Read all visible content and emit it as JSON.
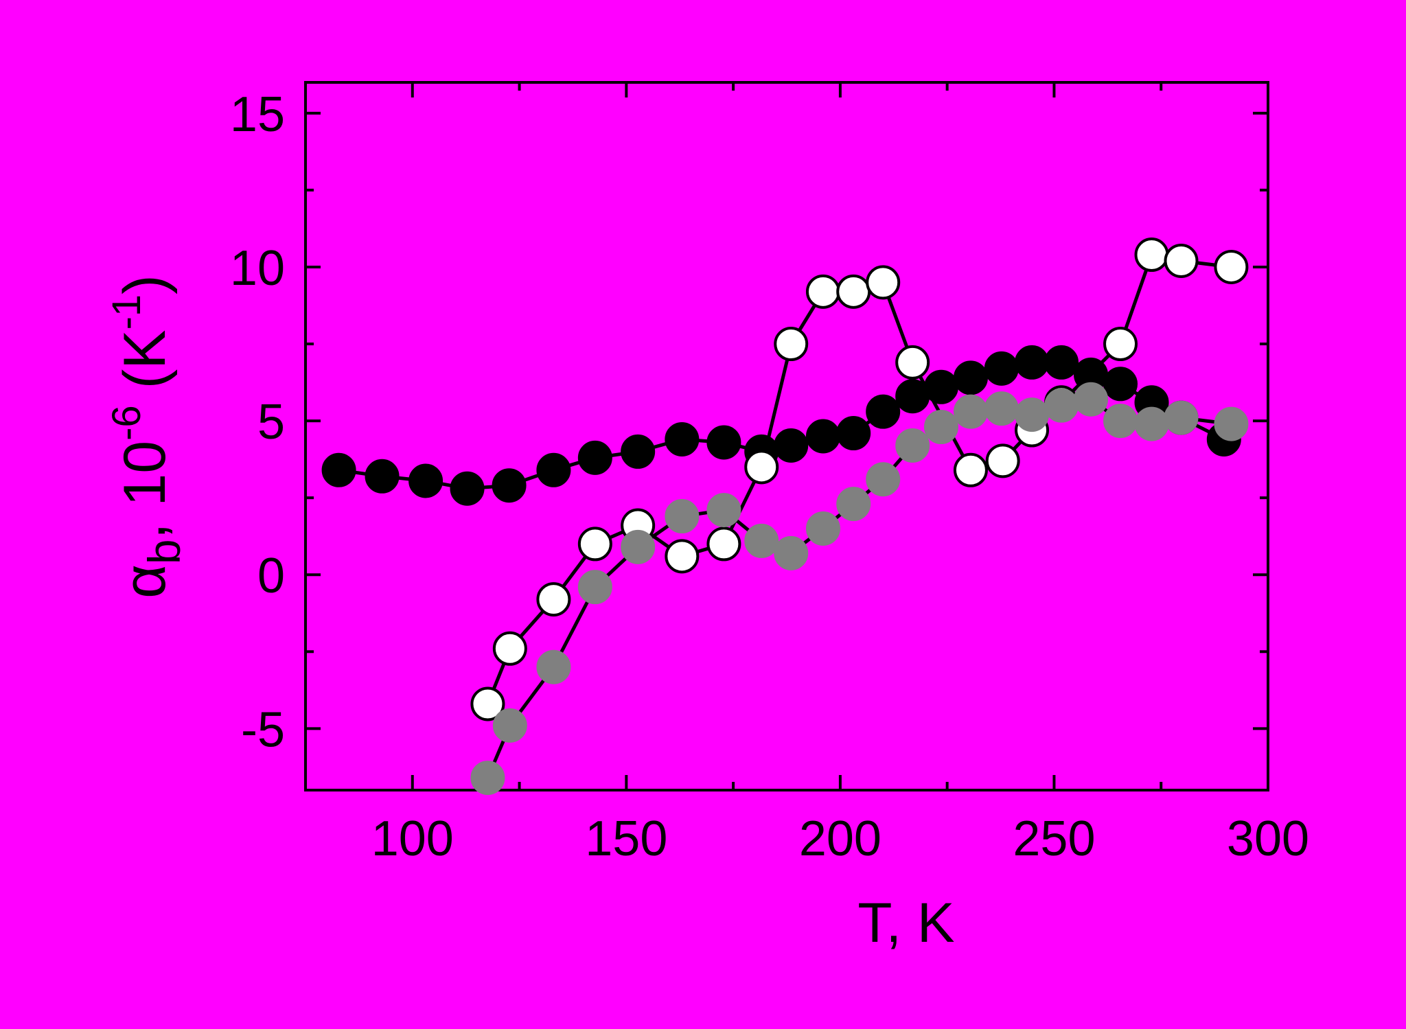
{
  "chart_data": {
    "type": "line",
    "xlabel": "T, K",
    "ylabel": [
      "α",
      "b",
      ", 10",
      "-6",
      " (K",
      "-1",
      ")"
    ],
    "xlim": [
      75,
      300
    ],
    "xticks": [
      100,
      150,
      200,
      250,
      300
    ],
    "xminorticks": [
      125,
      175,
      225,
      275
    ],
    "ylim": [
      -7,
      16
    ],
    "yticks": [
      -5,
      0,
      5,
      10,
      15
    ],
    "yminorticks": [
      -2.5,
      2.5,
      7.5,
      12.5
    ],
    "background": "#ff00ff",
    "series": [
      {
        "color": "#000000",
        "marker_fill": "#000000",
        "x": [
          82.8,
          92.9,
          103.1,
          112.8,
          122.6,
          133,
          142.7,
          152.7,
          163,
          172.8,
          181.6,
          188.5,
          196,
          203.1,
          210,
          216.9,
          223.6,
          230.5,
          237.7,
          244.8,
          251.7,
          258.6,
          265.5,
          272.8,
          279.7,
          289.7
        ],
        "values": [
          3.4,
          3.2,
          3.05,
          2.8,
          2.9,
          3.4,
          3.8,
          4.0,
          4.4,
          4.3,
          4.0,
          4.2,
          4.5,
          4.6,
          5.3,
          5.8,
          6.1,
          6.4,
          6.7,
          6.9,
          6.9,
          6.5,
          6.2,
          5.6,
          5.1,
          4.4
        ]
      },
      {
        "color": "#000000",
        "marker_fill": "#ffffff",
        "x": [
          117.6,
          122.8,
          133,
          142.7,
          152.7,
          163,
          172.8,
          181.6,
          188.5,
          196,
          203.1,
          210,
          216.9,
          230.5,
          238,
          244.8,
          251.7,
          265.5,
          272.8,
          279.7,
          291.4
        ],
        "values": [
          -4.2,
          -2.4,
          -0.8,
          1.0,
          1.6,
          0.6,
          1.0,
          3.5,
          7.5,
          9.2,
          9.2,
          9.5,
          6.9,
          3.4,
          3.7,
          4.7,
          5.6,
          7.5,
          10.4,
          10.2,
          10.0
        ]
      },
      {
        "color": "#000000",
        "marker_fill": "#808080",
        "x": [
          117.6,
          122.8,
          133,
          142.7,
          152.7,
          163,
          172.8,
          181.6,
          188.5,
          196,
          203.1,
          210,
          216.9,
          223.6,
          230.5,
          237.7,
          244.8,
          251.7,
          258.6,
          265.5,
          272.8,
          279.7,
          291.4
        ],
        "values": [
          -6.6,
          -4.9,
          -3.0,
          -0.4,
          0.9,
          1.9,
          2.1,
          1.1,
          0.7,
          1.5,
          2.3,
          3.1,
          4.2,
          4.8,
          5.3,
          5.4,
          5.2,
          5.5,
          5.7,
          5.0,
          4.9,
          5.1,
          4.9
        ]
      }
    ]
  }
}
